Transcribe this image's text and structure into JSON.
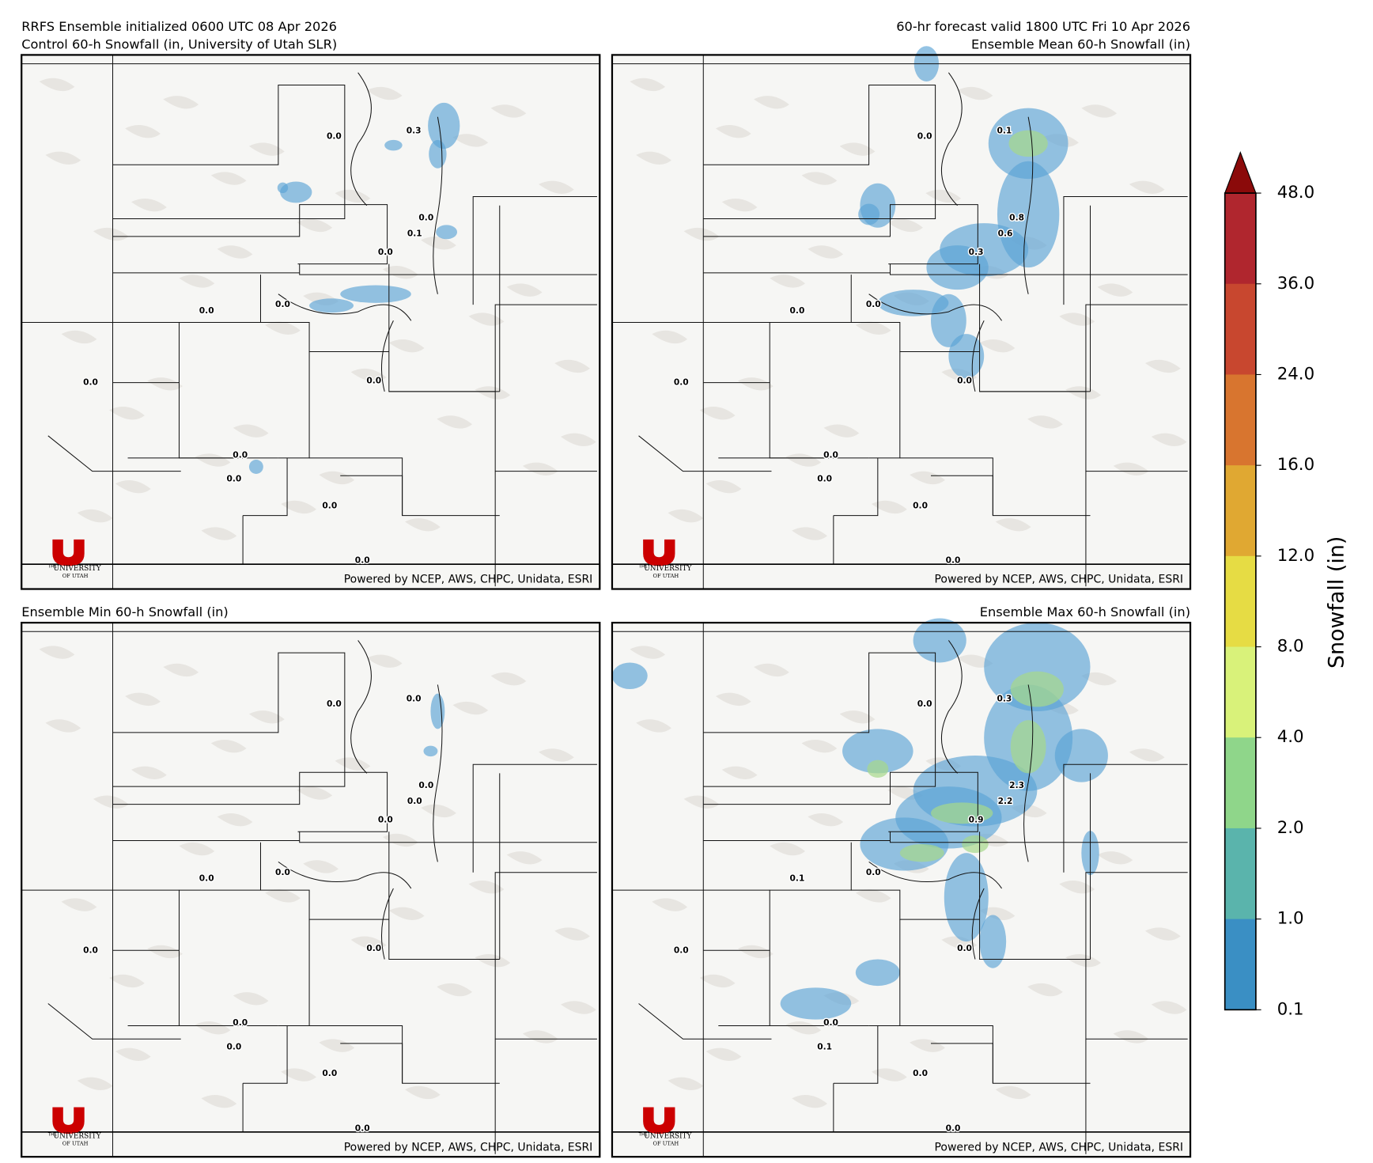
{
  "header": {
    "left": [
      "RRFS Ensemble initialized 0600 UTC 08 Apr 2026",
      "Control 60-h Snowfall (in, University of Utah SLR)"
    ],
    "right": [
      "60-hr forecast valid 1800 UTC Fri 10 Apr 2026",
      "Ensemble Mean 60-h Snowfall (in)"
    ]
  },
  "panels": [
    {
      "station_values": [
        "0.0",
        "0.3",
        "0.0",
        "0.1",
        "0.0",
        "0.0",
        "0.0",
        "0.0",
        "0.0",
        "0.0",
        "0.0",
        "0.0",
        "0.0"
      ]
    },
    {
      "station_values": [
        "0.0",
        "0.1",
        "0.8",
        "0.6",
        "0.3",
        "0.0",
        "0.0",
        "0.0",
        "0.0",
        "0.0",
        "0.0",
        "0.0",
        "0.0"
      ]
    },
    {
      "title": "Ensemble Min 60-h Snowfall (in)",
      "station_values": [
        "0.0",
        "0.0",
        "0.0",
        "0.0",
        "0.0",
        "0.0",
        "0.0",
        "0.0",
        "0.0",
        "0.0",
        "0.0",
        "0.0",
        "0.0"
      ]
    },
    {
      "title": "Ensemble Max 60-h Snowfall (in)",
      "station_values": [
        "0.0",
        "0.3",
        "2.3",
        "2.2",
        "0.9",
        "0.1",
        "0.0",
        "0.0",
        "0.0",
        "0.0",
        "0.1",
        "0.0",
        "0.0"
      ]
    }
  ],
  "credit": "Powered by NCEP, AWS, CHPC, Unidata, ESRI",
  "logo": {
    "top": "THE",
    "name": "UNIVERSITY",
    "bottom": "OF UTAH"
  },
  "colorbar": {
    "label": "Snowfall (in)",
    "ticks": [
      "48.0",
      "36.0",
      "24.0",
      "16.0",
      "12.0",
      "8.0",
      "4.0",
      "2.0",
      "1.0",
      "0.1"
    ],
    "colors": [
      "#b0262e",
      "#c8472f",
      "#d8752f",
      "#e0a832",
      "#e6dc44",
      "#d9f27a",
      "#8fd68a",
      "#5ab4ac",
      "#3a8fc4"
    ],
    "extend_color": "#8b0a0a"
  }
}
